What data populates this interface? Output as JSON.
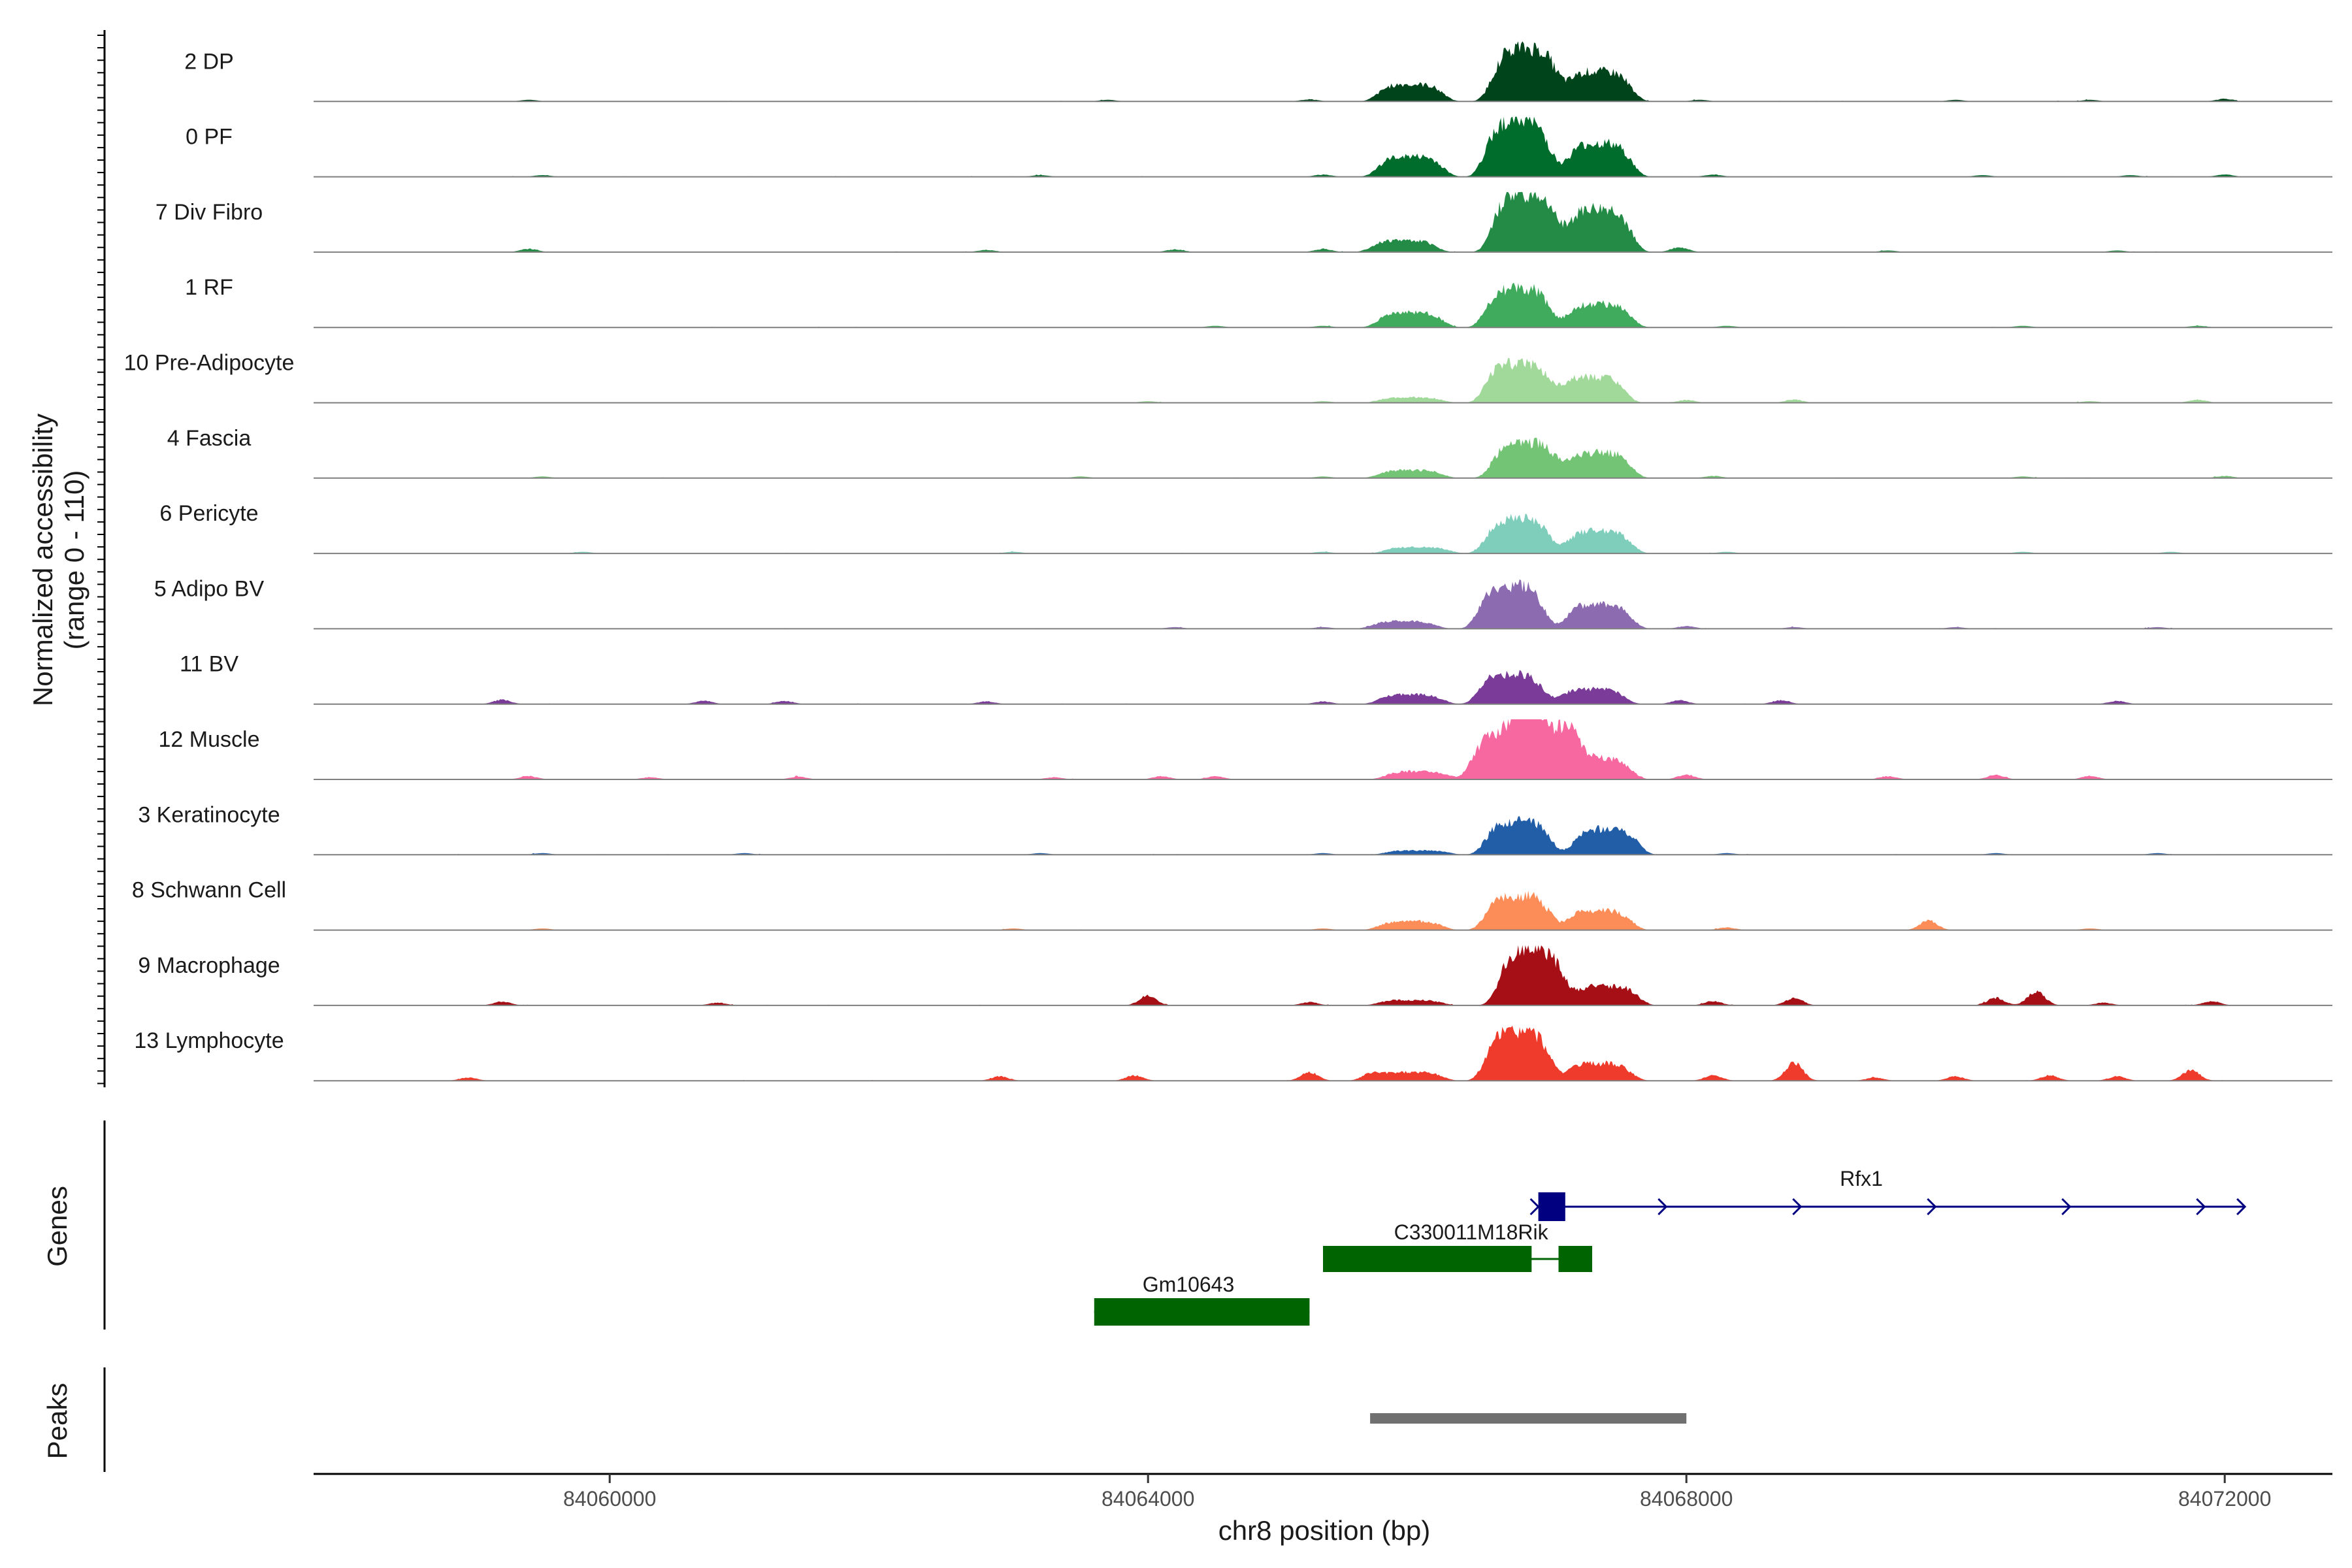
{
  "chart_data": {
    "type": "area",
    "title": "",
    "ylabel": "Normalized accessibility",
    "ylabel_sub": "(range 0 - 110)",
    "y_range": [
      0,
      110
    ],
    "xlabel": "chr8 position (bp)",
    "xlim": [
      84057800,
      84072800
    ],
    "xticks": [
      84060000,
      84064000,
      84068000,
      84072000
    ],
    "xtick_labels": [
      "84060000",
      "84064000",
      "84068000",
      "84072000"
    ],
    "panel_labels": {
      "genes": "Genes",
      "peaks": "Peaks"
    },
    "tracks": [
      {
        "name": "2 DP",
        "color": "#00441b",
        "peaks": [
          [
            84065950,
            32
          ],
          [
            84066800,
            100
          ],
          [
            84067350,
            56
          ]
        ],
        "minor": [
          [
            84059400,
            3
          ],
          [
            84063700,
            3
          ],
          [
            84065200,
            4
          ],
          [
            84068100,
            3
          ],
          [
            84070000,
            3
          ],
          [
            84071000,
            3
          ],
          [
            84072000,
            5
          ]
        ]
      },
      {
        "name": "0 PF",
        "color": "#006d2c",
        "peaks": [
          [
            84065950,
            38
          ],
          [
            84066750,
            105
          ],
          [
            84067350,
            62
          ]
        ],
        "minor": [
          [
            84059500,
            3
          ],
          [
            84063200,
            3
          ],
          [
            84065300,
            4
          ],
          [
            84068200,
            4
          ],
          [
            84070200,
            3
          ],
          [
            84071300,
            3
          ],
          [
            84072000,
            4
          ]
        ]
      },
      {
        "name": "7 Div Fibro",
        "color": "#238b45",
        "peaks": [
          [
            84065900,
            22
          ],
          [
            84066800,
            108
          ],
          [
            84067350,
            80
          ]
        ],
        "minor": [
          [
            84059400,
            6
          ],
          [
            84062800,
            4
          ],
          [
            84064200,
            5
          ],
          [
            84065300,
            6
          ],
          [
            84067950,
            9
          ],
          [
            84069500,
            3
          ],
          [
            84071200,
            3
          ]
        ]
      },
      {
        "name": "1 RF",
        "color": "#41ab5d",
        "peaks": [
          [
            84065950,
            28
          ],
          [
            84066750,
            72
          ],
          [
            84067350,
            44
          ]
        ],
        "minor": [
          [
            84064500,
            3
          ],
          [
            84065300,
            3
          ],
          [
            84068300,
            3
          ],
          [
            84070500,
            3
          ],
          [
            84071800,
            3
          ]
        ]
      },
      {
        "name": "10 Pre-Adipocyte",
        "color": "#a1d99b",
        "peaks": [
          [
            84065950,
            10
          ],
          [
            84066750,
            74
          ],
          [
            84067300,
            48
          ]
        ],
        "minor": [
          [
            84064000,
            3
          ],
          [
            84065300,
            3
          ],
          [
            84068000,
            5
          ],
          [
            84068800,
            6
          ],
          [
            84071000,
            3
          ],
          [
            84071800,
            6
          ]
        ]
      },
      {
        "name": "4 Fascia",
        "color": "#74c476",
        "peaks": [
          [
            84065950,
            15
          ],
          [
            84066800,
            66
          ],
          [
            84067350,
            48
          ]
        ],
        "minor": [
          [
            84059500,
            3
          ],
          [
            84063500,
            3
          ],
          [
            84065300,
            3
          ],
          [
            84068200,
            4
          ],
          [
            84070500,
            3
          ],
          [
            84072000,
            4
          ]
        ]
      },
      {
        "name": "6 Pericyte",
        "color": "#7fcdbb",
        "peaks": [
          [
            84066000,
            12
          ],
          [
            84066750,
            64
          ],
          [
            84067350,
            42
          ]
        ],
        "minor": [
          [
            84059800,
            3
          ],
          [
            84063000,
            3
          ],
          [
            84065300,
            3
          ],
          [
            84068300,
            3
          ],
          [
            84070500,
            3
          ],
          [
            84071600,
            3
          ]
        ]
      },
      {
        "name": "5 Adipo BV",
        "color": "#8c6bb1",
        "peaks": [
          [
            84065900,
            14
          ],
          [
            84066700,
            80
          ],
          [
            84067350,
            46
          ]
        ],
        "minor": [
          [
            84064200,
            3
          ],
          [
            84065300,
            3
          ],
          [
            84068000,
            5
          ],
          [
            84068800,
            3
          ],
          [
            84070000,
            3
          ],
          [
            84071500,
            3
          ]
        ]
      },
      {
        "name": "11 BV",
        "color": "#7a3c98",
        "peaks": [
          [
            84065950,
            18
          ],
          [
            84066700,
            56
          ],
          [
            84067300,
            28
          ]
        ],
        "minor": [
          [
            84059200,
            8
          ],
          [
            84060700,
            6
          ],
          [
            84061300,
            6
          ],
          [
            84062800,
            5
          ],
          [
            84065300,
            5
          ],
          [
            84067950,
            7
          ],
          [
            84068700,
            7
          ],
          [
            84071200,
            6
          ]
        ]
      },
      {
        "name": "12 Muscle",
        "color": "#f768a1",
        "peaks": [
          [
            84066000,
            15
          ],
          [
            84066650,
            84
          ],
          [
            84066950,
            92
          ],
          [
            84067350,
            40
          ]
        ],
        "minor": [
          [
            84059400,
            6
          ],
          [
            84060300,
            4
          ],
          [
            84061400,
            5
          ],
          [
            84063300,
            4
          ],
          [
            84064100,
            6
          ],
          [
            84064500,
            6
          ],
          [
            84068000,
            9
          ],
          [
            84069500,
            6
          ],
          [
            84070300,
            8
          ],
          [
            84071000,
            6
          ]
        ]
      },
      {
        "name": "3 Keratinocyte",
        "color": "#225ea8",
        "peaks": [
          [
            84066000,
            8
          ],
          [
            84066750,
            62
          ],
          [
            84067400,
            48
          ]
        ],
        "minor": [
          [
            84059500,
            3
          ],
          [
            84061000,
            3
          ],
          [
            84063200,
            3
          ],
          [
            84065300,
            3
          ],
          [
            84068300,
            3
          ],
          [
            84070300,
            3
          ],
          [
            84071500,
            3
          ]
        ]
      },
      {
        "name": "8 Schwann Cell",
        "color": "#fc8d59",
        "peaks": [
          [
            84065950,
            16
          ],
          [
            84066750,
            64
          ],
          [
            84067350,
            36
          ]
        ],
        "minor": [
          [
            84059500,
            3
          ],
          [
            84063000,
            3
          ],
          [
            84065300,
            3
          ],
          [
            84068300,
            5
          ],
          [
            84069800,
            18
          ],
          [
            84071000,
            3
          ]
        ]
      },
      {
        "name": "9 Macrophage",
        "color": "#a50f15",
        "peaks": [
          [
            84065950,
            10
          ],
          [
            84066850,
            104
          ],
          [
            84067400,
            36
          ]
        ],
        "minor": [
          [
            84059200,
            7
          ],
          [
            84060800,
            5
          ],
          [
            84064000,
            18
          ],
          [
            84065200,
            6
          ],
          [
            84068200,
            8
          ],
          [
            84068800,
            14
          ],
          [
            84070300,
            14
          ],
          [
            84070600,
            26
          ],
          [
            84071100,
            5
          ],
          [
            84071900,
            8
          ]
        ]
      },
      {
        "name": "13 Lymphocyte",
        "color": "#ef3b2c",
        "peaks": [
          [
            84065950,
            16
          ],
          [
            84066750,
            92
          ],
          [
            84067350,
            32
          ]
        ],
        "minor": [
          [
            84058950,
            6
          ],
          [
            84062900,
            8
          ],
          [
            84063900,
            10
          ],
          [
            84065200,
            16
          ],
          [
            84065650,
            12
          ],
          [
            84068200,
            10
          ],
          [
            84068800,
            34
          ],
          [
            84069400,
            6
          ],
          [
            84070000,
            8
          ],
          [
            84070700,
            10
          ],
          [
            84071200,
            8
          ],
          [
            84071750,
            20
          ]
        ]
      }
    ],
    "genes": [
      {
        "name": "Rfx1",
        "color": "#000080",
        "strand": "+",
        "start": 84066900,
        "end": 84072150,
        "exons": [
          [
            84066900,
            84067100
          ]
        ],
        "label_pos": 84069300,
        "row": 0
      },
      {
        "name": "C330011M18Rik",
        "color": "#006400",
        "strand": "",
        "start": 84065300,
        "end": 84067300,
        "exons": [
          [
            84065300,
            84066850
          ],
          [
            84067050,
            84067300
          ]
        ],
        "label_pos": 84066400,
        "row": 1
      },
      {
        "name": "Gm10643",
        "color": "#006400",
        "strand": "",
        "start": 84063600,
        "end": 84065200,
        "exons": [
          [
            84063600,
            84065200
          ]
        ],
        "label_pos": 84064300,
        "row": 2
      }
    ],
    "peaks": [
      {
        "start": 84065650,
        "end": 84068000,
        "color": "#707070"
      }
    ]
  }
}
